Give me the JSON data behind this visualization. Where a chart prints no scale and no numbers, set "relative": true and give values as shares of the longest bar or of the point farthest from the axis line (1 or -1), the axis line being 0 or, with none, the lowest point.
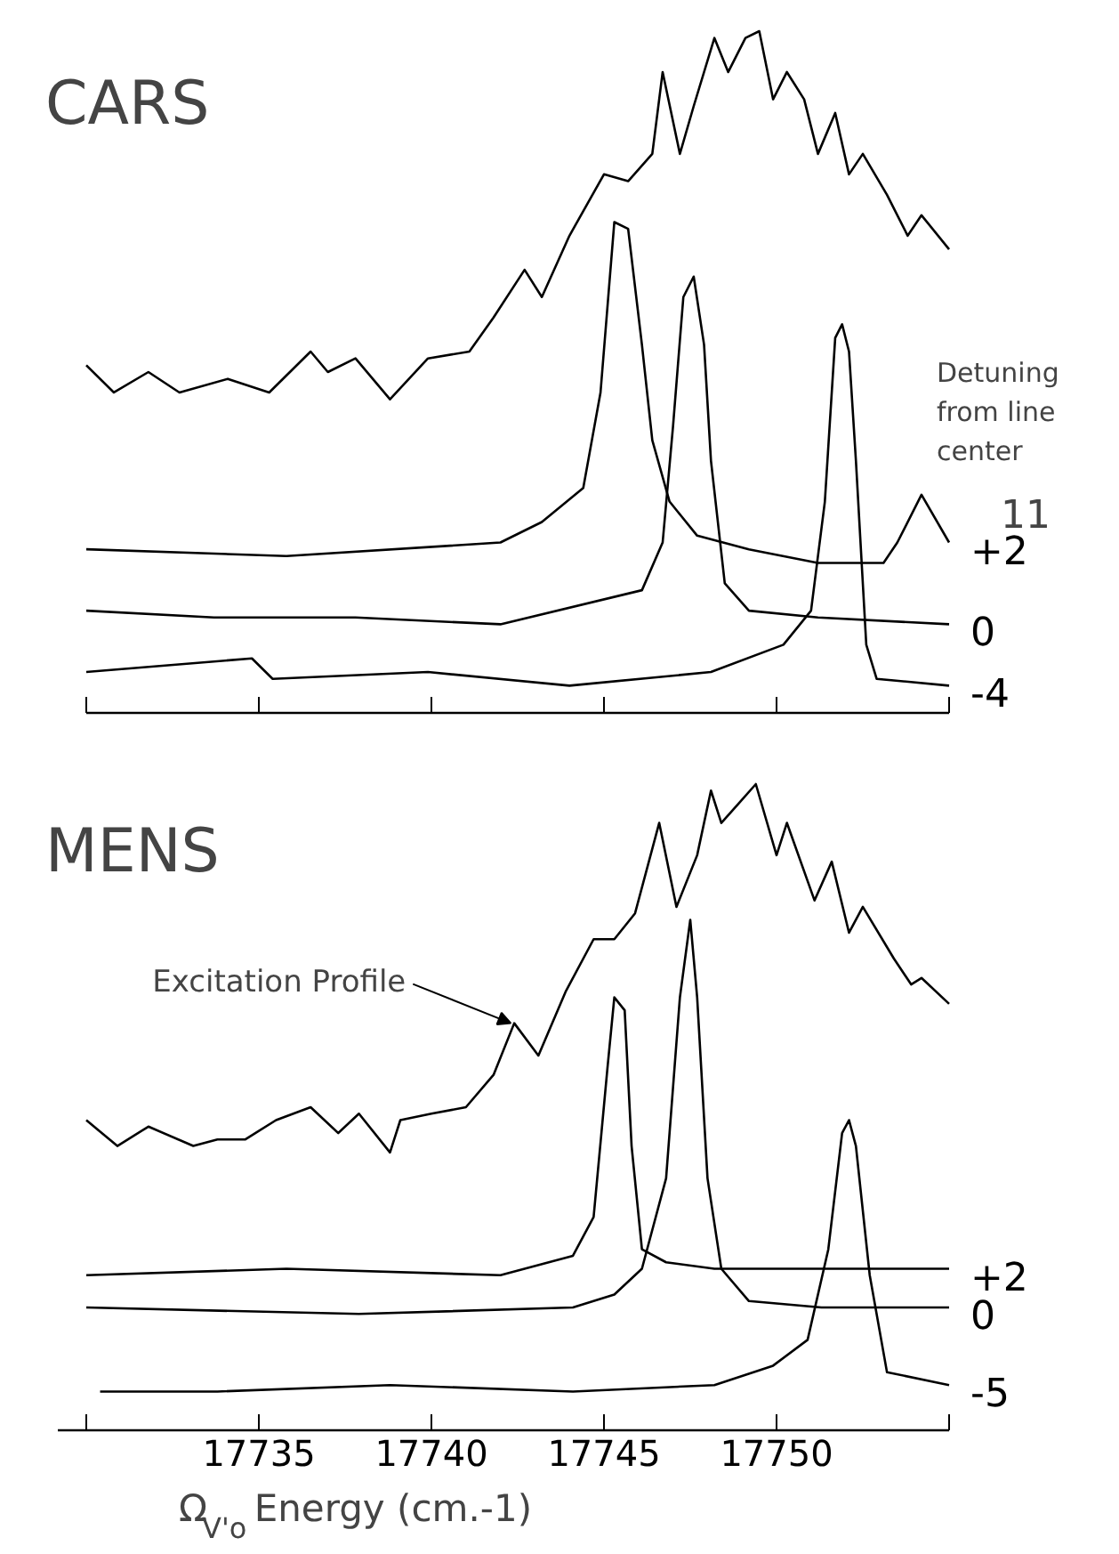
{
  "chart_data": [
    {
      "type": "line",
      "title": "CARS",
      "relative": true,
      "legend_title": "Detuning from line center",
      "annotations": [
        "11"
      ],
      "xlim": [
        17730,
        17755
      ],
      "xticks": [
        17730,
        17735,
        17740,
        17745,
        17750,
        17755
      ],
      "tick_labels": false,
      "grid": false,
      "series": [
        {
          "color": "#000000",
          "x": [
            17730.0,
            17730.8,
            17731.8,
            17732.7,
            17734.1,
            17735.3,
            17736.5,
            17737.0,
            17737.8,
            17738.8,
            17739.9,
            17741.1,
            17741.8,
            17742.7,
            17743.2,
            17744.0,
            17745.0,
            17745.7,
            17746.4,
            17746.7,
            17747.2,
            17747.6,
            17748.2,
            17748.6,
            17749.1,
            17749.5,
            17749.9,
            17750.3,
            17750.8,
            17751.2,
            17751.7,
            17752.1,
            17752.5,
            17753.2,
            17753.8,
            17754.2,
            17755.0
          ],
          "values": [
            0.51,
            0.47,
            0.5,
            0.47,
            0.49,
            0.47,
            0.53,
            0.5,
            0.52,
            0.46,
            0.52,
            0.53,
            0.58,
            0.65,
            0.61,
            0.7,
            0.79,
            0.78,
            0.82,
            0.94,
            0.82,
            0.89,
            0.99,
            0.94,
            0.99,
            1,
            0.9,
            0.94,
            0.9,
            0.82,
            0.88,
            0.79,
            0.82,
            0.76,
            0.7,
            0.73,
            0.68
          ]
        },
        {
          "name": "+2",
          "color": "#000000",
          "x": [
            17730.0,
            17735.8,
            17742.0,
            17743.2,
            17744.4,
            17744.9,
            17745.3,
            17745.7,
            17746.1,
            17746.4,
            17746.9,
            17747.7,
            17749.2,
            17751.2,
            17753.1,
            17753.5,
            17754.2,
            17755.0
          ],
          "values": [
            0.24,
            0.23,
            0.25,
            0.28,
            0.33,
            0.47,
            0.72,
            0.71,
            0.54,
            0.4,
            0.31,
            0.26,
            0.24,
            0.22,
            0.22,
            0.25,
            0.32,
            0.25
          ]
        },
        {
          "name": "0",
          "color": "#000000",
          "x": [
            17730.0,
            17733.7,
            17737.8,
            17742.0,
            17746.1,
            17746.7,
            17747.0,
            17747.3,
            17747.6,
            17747.9,
            17748.1,
            17748.5,
            17749.2,
            17751.2,
            17755.0
          ],
          "values": [
            0.15,
            0.14,
            0.14,
            0.13,
            0.18,
            0.25,
            0.42,
            0.61,
            0.64,
            0.54,
            0.37,
            0.19,
            0.15,
            0.14,
            0.13
          ]
        },
        {
          "name": "-4",
          "color": "#000000",
          "x": [
            17730.0,
            17734.8,
            17735.4,
            17739.9,
            17744.0,
            17748.1,
            17750.2,
            17751.0,
            17751.4,
            17751.7,
            17751.9,
            17752.1,
            17752.3,
            17752.6,
            17752.9,
            17755.0
          ],
          "values": [
            0.06,
            0.08,
            0.05,
            0.06,
            0.04,
            0.06,
            0.1,
            0.15,
            0.31,
            0.55,
            0.57,
            0.53,
            0.37,
            0.1,
            0.05,
            0.04
          ]
        }
      ]
    },
    {
      "type": "line",
      "title": "MENS",
      "relative": true,
      "xlabel": "Ω$_{V'o}$   Energy (cm.-1)",
      "annotations": [
        {
          "text": "Excitation Profile",
          "x": 17742.3,
          "y": 0.63
        }
      ],
      "xlim": [
        17729.2,
        17755
      ],
      "xticks": [
        {
          "value": 17730,
          "label": null
        },
        17735,
        17740,
        17745,
        17750,
        {
          "value": 17755,
          "label": null
        }
      ],
      "tick_labels": "x",
      "grid": false,
      "series": [
        {
          "color": "#000000",
          "x": [
            17730.0,
            17730.9,
            17731.8,
            17733.1,
            17733.8,
            17734.6,
            17735.5,
            17736.5,
            17737.3,
            17737.9,
            17738.8,
            17739.1,
            17740.0,
            17741.0,
            17741.8,
            17742.4,
            17743.1,
            17743.9,
            17744.7,
            17745.3,
            17745.9,
            17746.6,
            17747.1,
            17747.7,
            17748.1,
            17748.4,
            17748.9,
            17749.4,
            17750.0,
            17750.3,
            17751.1,
            17751.6,
            17752.1,
            17752.5,
            17753.4,
            17753.9,
            17754.2,
            17755.0
          ],
          "values": [
            0.48,
            0.44,
            0.47,
            0.44,
            0.45,
            0.45,
            0.48,
            0.5,
            0.46,
            0.49,
            0.43,
            0.48,
            0.49,
            0.5,
            0.55,
            0.63,
            0.58,
            0.68,
            0.76,
            0.76,
            0.8,
            0.94,
            0.81,
            0.89,
            0.99,
            0.94,
            0.97,
            1,
            0.89,
            0.94,
            0.82,
            0.88,
            0.77,
            0.81,
            0.73,
            0.69,
            0.7,
            0.66
          ]
        },
        {
          "name": "+2",
          "color": "#000000",
          "x": [
            17730.0,
            17735.8,
            17742.0,
            17744.1,
            17744.7,
            17745.1,
            17745.3,
            17745.6,
            17745.8,
            17746.1,
            17746.8,
            17748.2,
            17751.3,
            17755.0
          ],
          "values": [
            0.24,
            0.25,
            0.24,
            0.27,
            0.33,
            0.56,
            0.67,
            0.65,
            0.44,
            0.28,
            0.26,
            0.25,
            0.25,
            0.25
          ]
        },
        {
          "name": "0",
          "color": "#000000",
          "x": [
            17730.0,
            17737.9,
            17744.1,
            17745.3,
            17746.1,
            17746.8,
            17747.2,
            17747.5,
            17747.7,
            17748.0,
            17748.4,
            17749.2,
            17751.3,
            17755.0
          ],
          "values": [
            0.19,
            0.18,
            0.19,
            0.21,
            0.25,
            0.39,
            0.67,
            0.79,
            0.67,
            0.39,
            0.25,
            0.2,
            0.19,
            0.19
          ]
        },
        {
          "name": "-5",
          "color": "#000000",
          "x": [
            17730.4,
            17733.8,
            17738.8,
            17744.1,
            17748.2,
            17749.9,
            17750.9,
            17751.5,
            17751.9,
            17752.1,
            17752.3,
            17752.7,
            17753.2,
            17755.0
          ],
          "values": [
            0.06,
            0.06,
            0.07,
            0.06,
            0.07,
            0.1,
            0.14,
            0.28,
            0.46,
            0.48,
            0.44,
            0.24,
            0.09,
            0.07
          ]
        }
      ]
    }
  ]
}
